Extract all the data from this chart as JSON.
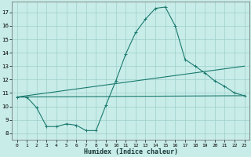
{
  "xlabel": "Humidex (Indice chaleur)",
  "xlim": [
    -0.5,
    23.5
  ],
  "ylim": [
    7.5,
    17.8
  ],
  "yticks": [
    8,
    9,
    10,
    11,
    12,
    13,
    14,
    15,
    16,
    17
  ],
  "xtick_positions": [
    0,
    1,
    2,
    3,
    4,
    5,
    6,
    7,
    8,
    9,
    10,
    11,
    12,
    13,
    14,
    15,
    16,
    17,
    18,
    19,
    20,
    21,
    22,
    23
  ],
  "xtick_labels": [
    "0",
    "1",
    "2",
    "3",
    "4",
    "5",
    "6",
    "7",
    "8",
    "9",
    "10",
    "11",
    "12",
    "13",
    "14",
    "15",
    "16",
    "17",
    "18",
    "19",
    "20",
    "21",
    "22",
    "23"
  ],
  "background_color": "#c8ece8",
  "grid_color": "#9dd0cc",
  "line_color": "#1a7a6e",
  "lines": [
    {
      "x": [
        0,
        1,
        2,
        3,
        4,
        5,
        6,
        7,
        8,
        9,
        10,
        11,
        12,
        13,
        14,
        15,
        16,
        17,
        18,
        19,
        20,
        21,
        22,
        23
      ],
      "y": [
        10.7,
        10.7,
        9.9,
        8.5,
        8.5,
        8.7,
        8.6,
        8.2,
        8.2,
        10.1,
        11.9,
        13.9,
        15.5,
        16.5,
        17.3,
        17.4,
        16.0,
        13.5,
        13.0,
        12.5,
        11.9,
        11.5,
        11.0,
        10.8
      ]
    },
    {
      "x": [
        0,
        23
      ],
      "y": [
        10.7,
        13.0
      ]
    },
    {
      "x": [
        0,
        23
      ],
      "y": [
        10.7,
        10.8
      ]
    }
  ]
}
